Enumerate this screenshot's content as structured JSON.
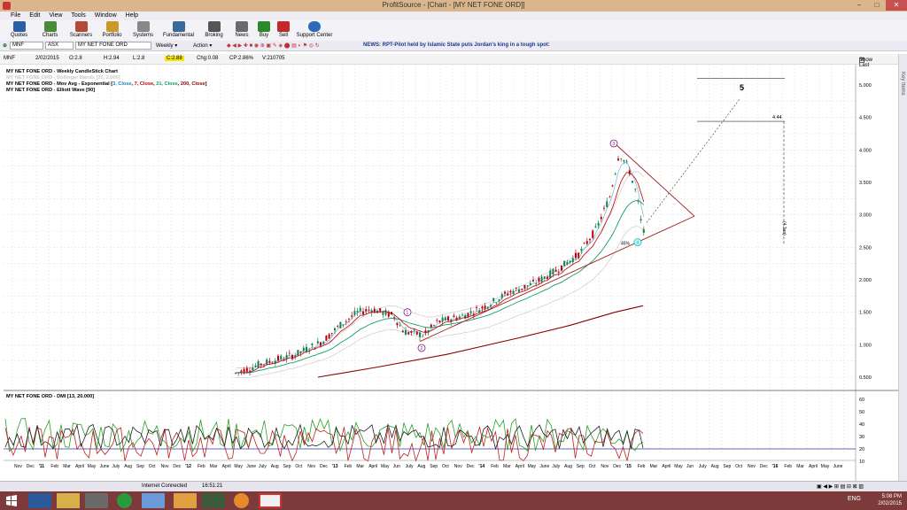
{
  "window": {
    "title": "ProfitSource - [Chart - [MY NET FONE ORD]]",
    "min": "–",
    "max": "□",
    "close": "✕"
  },
  "menu": [
    "File",
    "Edit",
    "View",
    "Tools",
    "Window",
    "Help"
  ],
  "toolbar": [
    "Quotes",
    "Charts",
    "Scanners",
    "Portfolio",
    "Systems",
    "Fundamental",
    "Broking",
    "News",
    "Buy",
    "Sell",
    "Support Center"
  ],
  "address": {
    "symbol": "MNF",
    "exchange": "ASX",
    "name": "MY NET FONE ORD",
    "period": "Weekly",
    "action": "Action",
    "news": "NEWS: RPT-Pilot held by Islamic State puts Jordan's king in a tough spot:"
  },
  "info": {
    "symbol": "MNF",
    "date": "2/02/2015",
    "open": "O:2.8",
    "high": "H:2.94",
    "low": "L:2.8",
    "close": "C:2.88",
    "chg": "Chg:0.08",
    "cp": "CP:2.86%",
    "vol": "V:210705",
    "show_last": "Show Last"
  },
  "legend": {
    "line1": "MY NET FONE ORD - Weekly CandleStick Chart",
    "line2": "MY NET FONE ORD - Bollinger Bands [20, 2.000]",
    "line3_prefix": "MY NET FONE ORD - Mov Avg - Exponential [",
    "line3_parts": [
      {
        "text": "3, Close",
        "color": "#1a7fbf"
      },
      {
        "text": ", ",
        "color": "#000000"
      },
      {
        "text": "7, Close",
        "color": "#c00000"
      },
      {
        "text": ", ",
        "color": "#000000"
      },
      {
        "text": "21, Close",
        "color": "#1a9a6a"
      },
      {
        "text": ", ",
        "color": "#000000"
      },
      {
        "text": "200, Close",
        "color": "#8b0000"
      }
    ],
    "line3_suffix": "]",
    "line4": "MY NET FONE ORD - Elliott Wave [90]",
    "dmi": "MY NET FONE ORD - DMI [13, 20.000]"
  },
  "price_axis": [
    "5.000",
    "4.500",
    "4.000",
    "3.500",
    "3.000",
    "2.500",
    "2.000",
    "1.500",
    "1.000",
    "0.500"
  ],
  "dmi_axis": [
    "60",
    "50",
    "40",
    "30",
    "20",
    "10"
  ],
  "time_axis": [
    "Nov",
    "Dec",
    "'11",
    "Feb",
    "Mar",
    "April",
    "May",
    "June",
    "July",
    "Aug",
    "Sep",
    "Oct",
    "Nov",
    "Dec",
    "'12",
    "Feb",
    "Mar",
    "April",
    "May",
    "June",
    "July",
    "Aug",
    "Sep",
    "Oct",
    "Nov",
    "Dec",
    "'13",
    "Feb",
    "Mar",
    "April",
    "May",
    "Jun",
    "July",
    "Aug",
    "Sep",
    "Oct",
    "Nov",
    "Dec",
    "'14",
    "Feb",
    "Mar",
    "April",
    "May",
    "June",
    "July",
    "Aug",
    "Sep",
    "Oct",
    "Nov",
    "Dec",
    "'15",
    "Feb",
    "Mar",
    "April",
    "May",
    "Jun",
    "July",
    "Aug",
    "Sep",
    "Oct",
    "Nov",
    "Dec",
    "'16",
    "Feb",
    "Mar",
    "April",
    "May",
    "June"
  ],
  "annotations": {
    "wave5": "5",
    "target": "4.44",
    "w1": "1",
    "w2": "2",
    "w3": "3",
    "w4": "4",
    "pct": "45%",
    "bracket": "(4.3an)"
  },
  "status": {
    "connection": "Internet Connected",
    "time": "16:51:21"
  },
  "taskbar": {
    "clock_time": "5:08 PM",
    "clock_date": "2/02/2015",
    "lang": "ENG"
  },
  "sidebar": "Key Items",
  "colors": {
    "title_bar": "#d9b68b",
    "taskbar": "#7d3a3a",
    "candle_up": "#1a7f4a",
    "candle_down": "#c00000",
    "ema3": "#1a7fbf",
    "ema7": "#c00000",
    "ema21": "#1a9a6a",
    "ema200": "#8b0000",
    "elliott": "#7a1a7a"
  }
}
